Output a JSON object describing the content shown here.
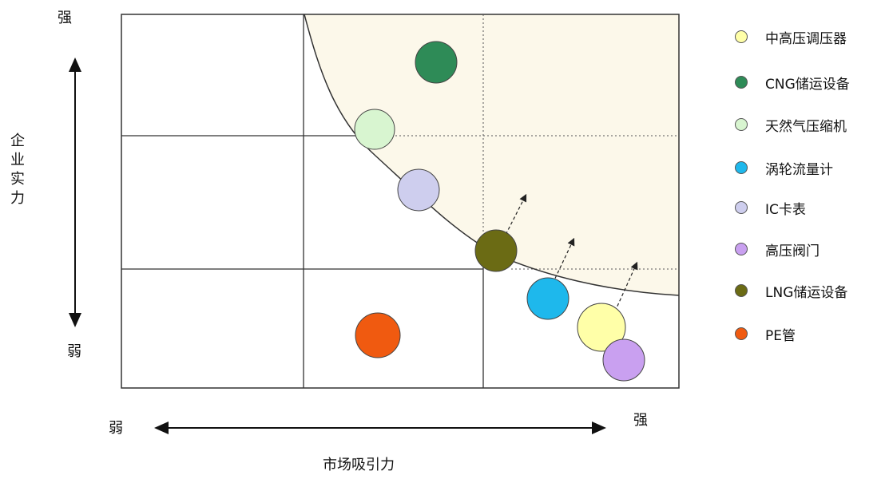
{
  "axes": {
    "y_strong": "强",
    "y_weak": "弱",
    "y_title": "企业实力",
    "x_weak": "弱",
    "x_strong": "强",
    "x_title": "市场吸引力"
  },
  "legend": [
    {
      "label": "中高压调压器",
      "color": "#FFFFA8"
    },
    {
      "label": "CNG储运设备",
      "color": "#2E8B57"
    },
    {
      "label": "天然气压缩机",
      "color": "#D8F5D0"
    },
    {
      "label": "涡轮流量计",
      "color": "#1EB8EC"
    },
    {
      "label": "IC卡表",
      "color": "#CECEEE"
    },
    {
      "label": "高压阀门",
      "color": "#C9A0F0"
    },
    {
      "label": "LNG储运设备",
      "color": "#6B6B14"
    },
    {
      "label": "PE管",
      "color": "#F05A10"
    }
  ],
  "colors": {
    "region_fill": "#FCF8EA",
    "grid": "#333333"
  }
}
